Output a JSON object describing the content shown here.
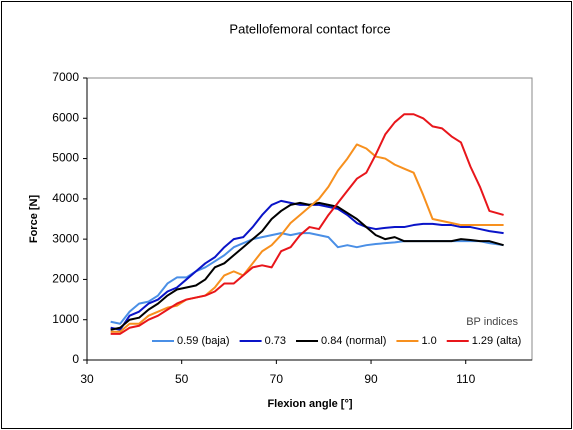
{
  "chart_data": {
    "type": "line",
    "title": "Patellofemoral contact force",
    "x_label": "Flexion angle [°]",
    "y_label": "Force [N]",
    "legend_title": "BP indices",
    "legend": "bottom",
    "x": [
      35,
      37,
      39,
      41,
      43,
      45,
      47,
      49,
      51,
      53,
      55,
      57,
      59,
      61,
      63,
      65,
      67,
      69,
      71,
      73,
      75,
      77,
      79,
      81,
      83,
      85,
      87,
      89,
      91,
      93,
      95,
      97,
      99,
      101,
      103,
      105,
      107,
      109,
      111,
      113,
      115,
      118
    ],
    "xlim": [
      30,
      124
    ],
    "xticks": [
      30,
      50,
      70,
      90,
      110
    ],
    "ylim": [
      0,
      7000
    ],
    "yticks": [
      0,
      1000,
      2000,
      3000,
      4000,
      5000,
      6000,
      7000
    ],
    "series": [
      {
        "name": "0.59 (baja)",
        "color": "#4a8fe6",
        "values": [
          950,
          900,
          1200,
          1400,
          1450,
          1600,
          1900,
          2050,
          2050,
          2200,
          2300,
          2450,
          2600,
          2800,
          2900,
          3000,
          3050,
          3100,
          3150,
          3100,
          3150,
          3150,
          3100,
          3050,
          2800,
          2850,
          2800,
          2850,
          2880,
          2900,
          2920,
          2950,
          2950,
          2950,
          2950,
          2950,
          2950,
          2950,
          2950,
          2950,
          2900,
          2850
        ]
      },
      {
        "name": "0.73",
        "color": "#0a14c8",
        "values": [
          800,
          750,
          1100,
          1200,
          1400,
          1500,
          1700,
          1800,
          2000,
          2200,
          2400,
          2550,
          2800,
          3000,
          3050,
          3300,
          3600,
          3850,
          3950,
          3900,
          3850,
          3850,
          3850,
          3800,
          3750,
          3600,
          3400,
          3300,
          3250,
          3280,
          3300,
          3300,
          3350,
          3380,
          3380,
          3350,
          3350,
          3300,
          3300,
          3250,
          3200,
          3150
        ]
      },
      {
        "name": "0.84 (normal)",
        "color": "#000000",
        "values": [
          750,
          800,
          1000,
          1050,
          1250,
          1400,
          1600,
          1750,
          1800,
          1850,
          2000,
          2300,
          2400,
          2600,
          2800,
          3000,
          3200,
          3500,
          3700,
          3850,
          3900,
          3850,
          3900,
          3850,
          3800,
          3650,
          3500,
          3300,
          3100,
          3000,
          3050,
          2950,
          2950,
          2950,
          2950,
          2950,
          2950,
          3000,
          2980,
          2950,
          2950,
          2850
        ]
      },
      {
        "name": "1.0",
        "color": "#f7901e",
        "values": [
          700,
          700,
          900,
          900,
          1100,
          1200,
          1300,
          1350,
          1500,
          1550,
          1600,
          1800,
          2100,
          2200,
          2100,
          2400,
          2700,
          2850,
          3100,
          3400,
          3600,
          3800,
          4000,
          4300,
          4700,
          5000,
          5350,
          5250,
          5050,
          5000,
          4850,
          4750,
          4650,
          4100,
          3500,
          3450,
          3400,
          3350,
          3350,
          3350,
          3350,
          3350
        ]
      },
      {
        "name": "1.29 (alta)",
        "color": "#e8161b",
        "values": [
          650,
          650,
          800,
          850,
          1000,
          1100,
          1250,
          1400,
          1500,
          1550,
          1600,
          1700,
          1900,
          1900,
          2100,
          2300,
          2350,
          2300,
          2700,
          2800,
          3100,
          3300,
          3250,
          3600,
          3900,
          4200,
          4500,
          4650,
          5100,
          5600,
          5900,
          6100,
          6100,
          6000,
          5800,
          5750,
          5550,
          5400,
          4800,
          4300,
          3700,
          3600
        ]
      }
    ]
  }
}
